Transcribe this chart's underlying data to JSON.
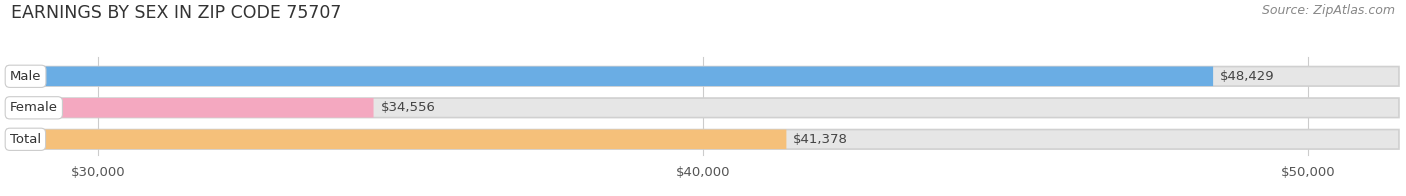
{
  "title": "EARNINGS BY SEX IN ZIP CODE 75707",
  "source": "Source: ZipAtlas.com",
  "categories": [
    "Male",
    "Female",
    "Total"
  ],
  "values": [
    48429,
    34556,
    41378
  ],
  "bar_colors": [
    "#6aade4",
    "#f4a8c0",
    "#f5c07a"
  ],
  "bar_bg_color": "#e6e6e6",
  "background_color": "#ffffff",
  "xlim_min": 28500,
  "xlim_max": 51500,
  "xmin": 30000,
  "xmax": 50000,
  "xticks": [
    30000,
    40000,
    50000
  ],
  "xticklabels": [
    "$30,000",
    "$40,000",
    "$50,000"
  ],
  "title_fontsize": 12.5,
  "tick_fontsize": 9.5,
  "label_fontsize": 9.5,
  "value_fontsize": 9.5,
  "source_fontsize": 9
}
